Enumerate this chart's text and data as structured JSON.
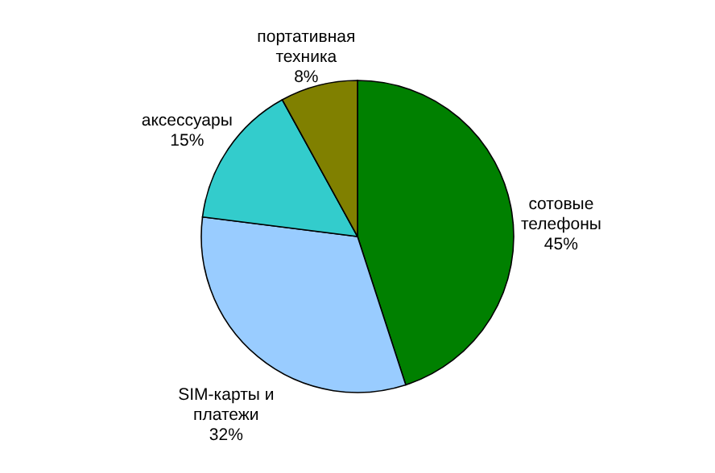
{
  "chart_data": {
    "type": "pie",
    "categories": [
      "сотовые\nтелефоны",
      "SIM-карты и\nплатежи",
      "аксессуары",
      "портативная\nтехника"
    ],
    "values": [
      45,
      32,
      15,
      8
    ],
    "value_labels": [
      "45%",
      "32%",
      "15%",
      "8%"
    ],
    "colors": [
      "#008000",
      "#99ccff",
      "#33cccc",
      "#808000"
    ]
  }
}
